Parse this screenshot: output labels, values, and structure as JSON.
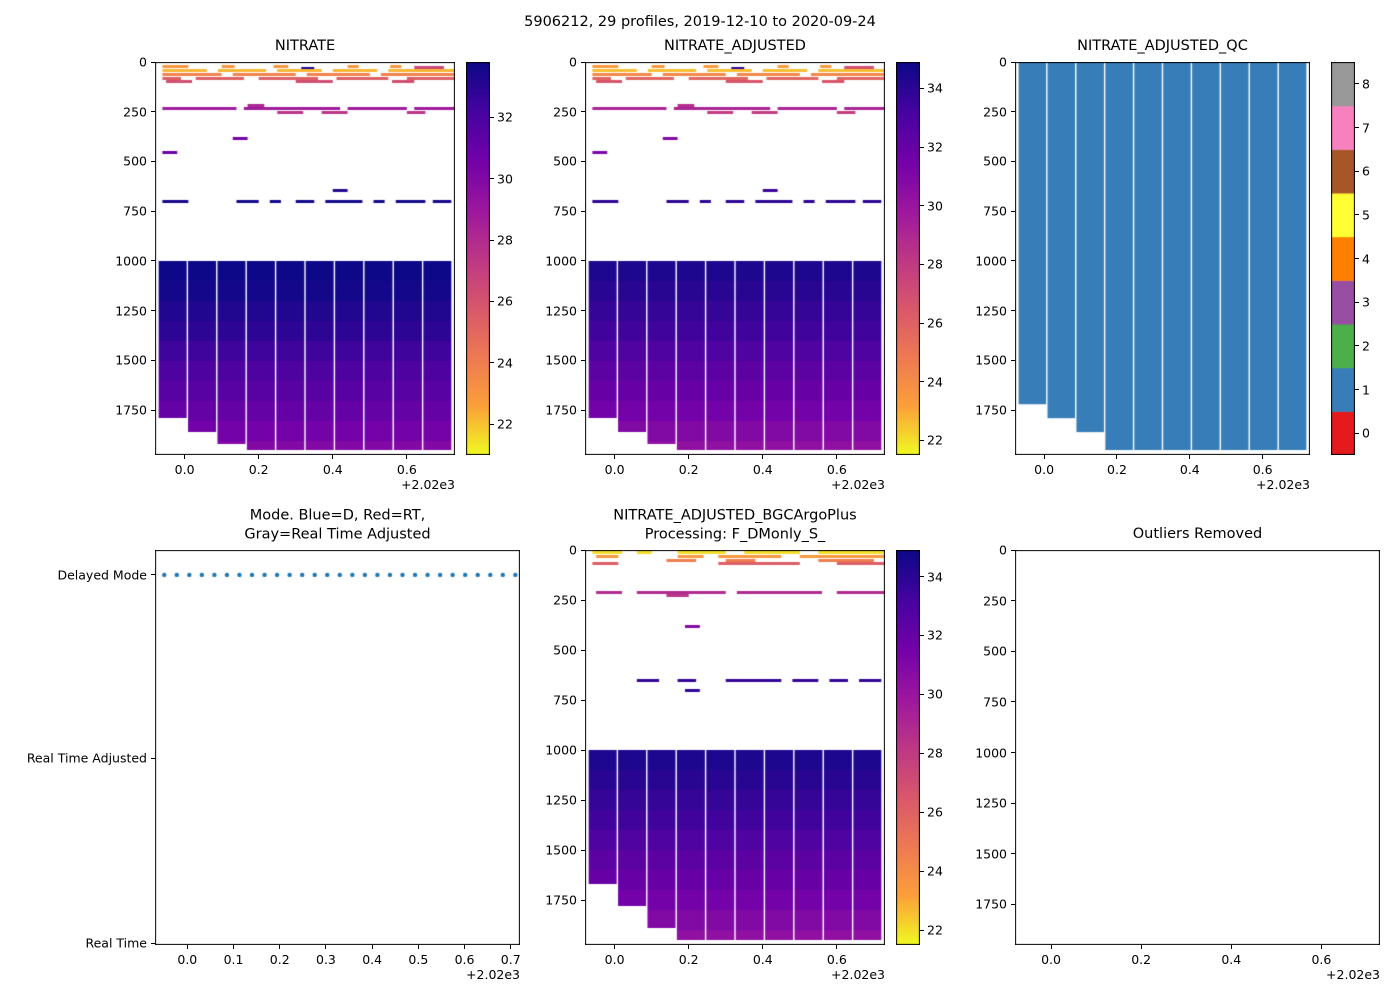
{
  "figure": {
    "suptitle": "5906212, 29 profiles, 2019-12-10 to 2020-09-24",
    "background": "#ffffff",
    "text_color": "#000000"
  },
  "colors": {
    "plasma_r_stops": [
      "#f0f921",
      "#fb9f3a",
      "#ed7953",
      "#d8576b",
      "#bd3786",
      "#9c179e",
      "#7201a8",
      "#46039f",
      "#0d0887"
    ],
    "qc_set1": [
      "#e41a1c",
      "#377eb8",
      "#4daf4a",
      "#984ea3",
      "#ff7f00",
      "#ffff33",
      "#a65628",
      "#f781bf",
      "#999999"
    ],
    "mode_dot": "#1f77b4"
  },
  "chart_data": [
    {
      "type": "profile_heatmap",
      "title": "NITRATE",
      "xlim": [
        -0.08,
        0.73
      ],
      "xtick_vals": [
        0.0,
        0.2,
        0.4,
        0.6
      ],
      "xtick_labels": [
        "0.0",
        "0.2",
        "0.4",
        "0.6"
      ],
      "x_offset_text": "+2.02e3",
      "ylim": [
        0,
        1975
      ],
      "ytick_vals": [
        0,
        250,
        500,
        750,
        1000,
        1250,
        1500,
        1750
      ],
      "ytick_labels": [
        "0",
        "250",
        "500",
        "750",
        "1000",
        "1250",
        "1500",
        "1750"
      ],
      "colorbar": {
        "vmin": 21.0,
        "vmax": 33.8,
        "ticks": [
          22,
          24,
          26,
          28,
          30,
          32
        ]
      },
      "deep_block": {
        "x_start": -0.072,
        "x_end": 0.722,
        "n_cols": 10,
        "depth_top": 1000,
        "depth_bottom": 1950,
        "value_profile": [
          [
            1000,
            34.0
          ],
          [
            1150,
            33.6
          ],
          [
            1350,
            32.9
          ],
          [
            1550,
            31.9
          ],
          [
            1750,
            31.1
          ],
          [
            1950,
            30.0
          ]
        ],
        "missing_below": [
          1790,
          1860,
          1920
        ]
      },
      "dashes": [
        {
          "d": 18,
          "v": 23.0,
          "segs": [
            [
              -0.06,
              0.01
            ],
            [
              0.1,
              0.135
            ],
            [
              0.24,
              0.28
            ],
            [
              0.44,
              0.47
            ],
            [
              0.555,
              0.585
            ]
          ]
        },
        {
          "d": 25,
          "v": 26.5,
          "segs": [
            [
              0.62,
              0.7
            ]
          ]
        },
        {
          "d": 30,
          "v": 33.3,
          "segs": [
            [
              0.315,
              0.35
            ]
          ]
        },
        {
          "d": 42,
          "v": 22.2,
          "segs": [
            [
              -0.06,
              0.06
            ],
            [
              0.09,
              0.22
            ],
            [
              0.25,
              0.37
            ],
            [
              0.4,
              0.52
            ],
            [
              0.55,
              0.73
            ]
          ]
        },
        {
          "d": 60,
          "v": 23.8,
          "segs": [
            [
              -0.06,
              0.1
            ],
            [
              0.13,
              0.3
            ],
            [
              0.33,
              0.5
            ],
            [
              0.53,
              0.73
            ]
          ]
        },
        {
          "d": 78,
          "v": 25.4,
          "segs": [
            [
              -0.06,
              -0.01
            ],
            [
              0.03,
              0.16
            ],
            [
              0.2,
              0.36
            ],
            [
              0.41,
              0.55
            ],
            [
              0.6,
              0.73
            ]
          ]
        },
        {
          "d": 95,
          "v": 26.2,
          "segs": [
            [
              -0.05,
              0.02
            ],
            [
              0.3,
              0.4
            ],
            [
              0.56,
              0.62
            ]
          ]
        },
        {
          "d": 215,
          "v": 28.2,
          "segs": [
            [
              0.17,
              0.215
            ]
          ]
        },
        {
          "d": 232,
          "v": 28.8,
          "segs": [
            [
              -0.06,
              0.14
            ],
            [
              0.16,
              0.42
            ],
            [
              0.44,
              0.6
            ],
            [
              0.62,
              0.73
            ]
          ]
        },
        {
          "d": 252,
          "v": 27.5,
          "segs": [
            [
              0.25,
              0.32
            ],
            [
              0.37,
              0.44
            ],
            [
              0.6,
              0.65
            ]
          ]
        },
        {
          "d": 380,
          "v": 30.5,
          "segs": [
            [
              0.13,
              0.17
            ]
          ]
        },
        {
          "d": 450,
          "v": 30.8,
          "segs": [
            [
              -0.06,
              -0.02
            ]
          ]
        },
        {
          "d": 645,
          "v": 33.2,
          "segs": [
            [
              0.4,
              0.44
            ]
          ]
        },
        {
          "d": 700,
          "v": 33.6,
          "segs": [
            [
              -0.06,
              0.01
            ],
            [
              0.14,
              0.2
            ],
            [
              0.23,
              0.26
            ],
            [
              0.3,
              0.35
            ],
            [
              0.38,
              0.48
            ],
            [
              0.51,
              0.54
            ],
            [
              0.57,
              0.65
            ],
            [
              0.67,
              0.72
            ]
          ]
        }
      ]
    },
    {
      "type": "profile_heatmap",
      "title": "NITRATE_ADJUSTED",
      "xlim": [
        -0.08,
        0.73
      ],
      "xtick_vals": [
        0.0,
        0.2,
        0.4,
        0.6
      ],
      "xtick_labels": [
        "0.0",
        "0.2",
        "0.4",
        "0.6"
      ],
      "x_offset_text": "+2.02e3",
      "ylim": [
        0,
        1975
      ],
      "ytick_vals": [
        0,
        250,
        500,
        750,
        1000,
        1250,
        1500,
        1750
      ],
      "ytick_labels": [
        "0",
        "250",
        "500",
        "750",
        "1000",
        "1250",
        "1500",
        "1750"
      ],
      "colorbar": {
        "vmin": 21.5,
        "vmax": 34.9,
        "ticks": [
          22,
          24,
          26,
          28,
          30,
          32,
          34
        ]
      },
      "deep_block": {
        "x_start": -0.072,
        "x_end": 0.722,
        "n_cols": 10,
        "depth_top": 1000,
        "depth_bottom": 1950,
        "value_profile": [
          [
            1000,
            34.6
          ],
          [
            1150,
            34.1
          ],
          [
            1350,
            33.4
          ],
          [
            1550,
            32.4
          ],
          [
            1750,
            31.5
          ],
          [
            1950,
            30.4
          ]
        ],
        "missing_below": [
          1790,
          1860,
          1920
        ]
      },
      "dashes": [
        {
          "d": 18,
          "v": 23.4,
          "segs": [
            [
              -0.06,
              0.01
            ],
            [
              0.1,
              0.135
            ],
            [
              0.24,
              0.28
            ],
            [
              0.44,
              0.47
            ],
            [
              0.555,
              0.585
            ]
          ]
        },
        {
          "d": 25,
          "v": 26.9,
          "segs": [
            [
              0.62,
              0.7
            ]
          ]
        },
        {
          "d": 30,
          "v": 33.8,
          "segs": [
            [
              0.315,
              0.35
            ]
          ]
        },
        {
          "d": 42,
          "v": 22.6,
          "segs": [
            [
              -0.06,
              0.06
            ],
            [
              0.09,
              0.22
            ],
            [
              0.25,
              0.37
            ],
            [
              0.4,
              0.52
            ],
            [
              0.55,
              0.73
            ]
          ]
        },
        {
          "d": 60,
          "v": 24.2,
          "segs": [
            [
              -0.06,
              0.1
            ],
            [
              0.13,
              0.3
            ],
            [
              0.33,
              0.5
            ],
            [
              0.53,
              0.73
            ]
          ]
        },
        {
          "d": 78,
          "v": 25.8,
          "segs": [
            [
              -0.06,
              -0.01
            ],
            [
              0.03,
              0.16
            ],
            [
              0.2,
              0.36
            ],
            [
              0.41,
              0.55
            ],
            [
              0.6,
              0.73
            ]
          ]
        },
        {
          "d": 95,
          "v": 26.6,
          "segs": [
            [
              -0.05,
              0.02
            ],
            [
              0.3,
              0.4
            ],
            [
              0.56,
              0.62
            ]
          ]
        },
        {
          "d": 215,
          "v": 28.6,
          "segs": [
            [
              0.17,
              0.215
            ]
          ]
        },
        {
          "d": 232,
          "v": 29.2,
          "segs": [
            [
              -0.06,
              0.14
            ],
            [
              0.16,
              0.42
            ],
            [
              0.44,
              0.6
            ],
            [
              0.62,
              0.73
            ]
          ]
        },
        {
          "d": 252,
          "v": 27.9,
          "segs": [
            [
              0.25,
              0.32
            ],
            [
              0.37,
              0.44
            ],
            [
              0.6,
              0.65
            ]
          ]
        },
        {
          "d": 380,
          "v": 30.9,
          "segs": [
            [
              0.13,
              0.17
            ]
          ]
        },
        {
          "d": 450,
          "v": 31.2,
          "segs": [
            [
              -0.06,
              -0.02
            ]
          ]
        },
        {
          "d": 645,
          "v": 33.6,
          "segs": [
            [
              0.4,
              0.44
            ]
          ]
        },
        {
          "d": 700,
          "v": 34.0,
          "segs": [
            [
              -0.06,
              0.01
            ],
            [
              0.14,
              0.2
            ],
            [
              0.23,
              0.26
            ],
            [
              0.3,
              0.35
            ],
            [
              0.38,
              0.48
            ],
            [
              0.51,
              0.54
            ],
            [
              0.57,
              0.65
            ],
            [
              0.67,
              0.72
            ]
          ]
        }
      ]
    },
    {
      "type": "qc_heatmap",
      "title": "NITRATE_ADJUSTED_QC",
      "xlim": [
        -0.08,
        0.73
      ],
      "xtick_vals": [
        0.0,
        0.2,
        0.4,
        0.6
      ],
      "xtick_labels": [
        "0.0",
        "0.2",
        "0.4",
        "0.6"
      ],
      "x_offset_text": "+2.02e3",
      "ylim": [
        0,
        1975
      ],
      "ytick_vals": [
        0,
        250,
        500,
        750,
        1000,
        1250,
        1500,
        1750
      ],
      "ytick_labels": [
        "0",
        "250",
        "500",
        "750",
        "1000",
        "1250",
        "1500",
        "1750"
      ],
      "qc_fill_value": 1,
      "block": {
        "x_start": -0.072,
        "x_end": 0.722,
        "n_cols": 10,
        "depth_top": 0,
        "depth_bottom": 1950,
        "missing_below": [
          1720,
          1790,
          1860
        ]
      },
      "colorbar": {
        "type": "discrete",
        "ticks": [
          0,
          1,
          2,
          3,
          4,
          5,
          6,
          7,
          8
        ]
      }
    },
    {
      "type": "mode_scatter",
      "title": "Mode. Blue=D, Red=RT,\nGray=Real Time Adjusted",
      "xlim": [
        -0.07,
        0.72
      ],
      "xtick_vals": [
        0.0,
        0.1,
        0.2,
        0.3,
        0.4,
        0.5,
        0.6,
        0.7
      ],
      "xtick_labels": [
        "0.0",
        "0.1",
        "0.2",
        "0.3",
        "0.4",
        "0.5",
        "0.6",
        "0.7"
      ],
      "x_offset_text": "+2.02e3",
      "categories": [
        "Delayed Mode",
        "Real Time Adjusted",
        "Real Time"
      ],
      "points": {
        "category": "Delayed Mode",
        "n": 29,
        "x_start": -0.05,
        "x_step": 0.02714
      }
    },
    {
      "type": "profile_heatmap",
      "title": "NITRATE_ADJUSTED_BGCArgoPlus\nProcessing: F_DMonly_S_",
      "xlim": [
        -0.08,
        0.73
      ],
      "xtick_vals": [
        0.0,
        0.2,
        0.4,
        0.6
      ],
      "xtick_labels": [
        "0.0",
        "0.2",
        "0.4",
        "0.6"
      ],
      "x_offset_text": "+2.02e3",
      "ylim": [
        0,
        1975
      ],
      "ytick_vals": [
        0,
        250,
        500,
        750,
        1000,
        1250,
        1500,
        1750
      ],
      "ytick_labels": [
        "0",
        "250",
        "500",
        "750",
        "1000",
        "1250",
        "1500",
        "1750"
      ],
      "colorbar": {
        "vmin": 21.5,
        "vmax": 34.9,
        "ticks": [
          22,
          24,
          26,
          28,
          30,
          32,
          34
        ]
      },
      "deep_block": {
        "x_start": -0.072,
        "x_end": 0.722,
        "n_cols": 10,
        "depth_top": 1000,
        "depth_bottom": 1950,
        "value_profile": [
          [
            1000,
            34.6
          ],
          [
            1150,
            34.1
          ],
          [
            1350,
            33.4
          ],
          [
            1550,
            32.4
          ],
          [
            1750,
            31.5
          ],
          [
            1950,
            30.4
          ]
        ],
        "missing_below": [
          1670,
          1780,
          1890
        ]
      },
      "dashes": [
        {
          "d": 12,
          "v": 22.0,
          "segs": [
            [
              -0.06,
              0.02
            ],
            [
              0.06,
              0.1
            ],
            [
              0.17,
              0.3
            ],
            [
              0.35,
              0.5
            ],
            [
              0.55,
              0.73
            ]
          ]
        },
        {
          "d": 30,
          "v": 23.5,
          "segs": [
            [
              -0.05,
              0.01
            ],
            [
              0.17,
              0.24
            ],
            [
              0.28,
              0.45
            ],
            [
              0.5,
              0.73
            ]
          ]
        },
        {
          "d": 48,
          "v": 24.6,
          "segs": [
            [
              0.14,
              0.22
            ],
            [
              0.3,
              0.38
            ],
            [
              0.55,
              0.7
            ]
          ]
        },
        {
          "d": 65,
          "v": 26.2,
          "segs": [
            [
              -0.06,
              0.01
            ],
            [
              0.28,
              0.5
            ],
            [
              0.6,
              0.73
            ]
          ]
        },
        {
          "d": 210,
          "v": 28.8,
          "segs": [
            [
              -0.05,
              0.02
            ],
            [
              0.06,
              0.3
            ],
            [
              0.33,
              0.56
            ],
            [
              0.6,
              0.73
            ]
          ]
        },
        {
          "d": 225,
          "v": 28.3,
          "segs": [
            [
              0.14,
              0.2
            ]
          ]
        },
        {
          "d": 380,
          "v": 30.9,
          "segs": [
            [
              0.19,
              0.23
            ]
          ]
        },
        {
          "d": 650,
          "v": 33.8,
          "segs": [
            [
              0.06,
              0.12
            ],
            [
              0.17,
              0.22
            ],
            [
              0.3,
              0.45
            ],
            [
              0.48,
              0.55
            ],
            [
              0.58,
              0.63
            ],
            [
              0.66,
              0.72
            ]
          ]
        },
        {
          "d": 700,
          "v": 33.9,
          "segs": [
            [
              0.19,
              0.23
            ]
          ]
        }
      ]
    },
    {
      "type": "empty",
      "title": "Outliers Removed",
      "xlim": [
        -0.08,
        0.73
      ],
      "xtick_vals": [
        0.0,
        0.2,
        0.4,
        0.6
      ],
      "xtick_labels": [
        "0.0",
        "0.2",
        "0.4",
        "0.6"
      ],
      "x_offset_text": "+2.02e3",
      "ylim": [
        0,
        1950
      ],
      "ytick_vals": [
        0,
        250,
        500,
        750,
        1000,
        1250,
        1500,
        1750
      ],
      "ytick_labels": [
        "0",
        "250",
        "500",
        "750",
        "1000",
        "1250",
        "1500",
        "1750"
      ]
    }
  ]
}
